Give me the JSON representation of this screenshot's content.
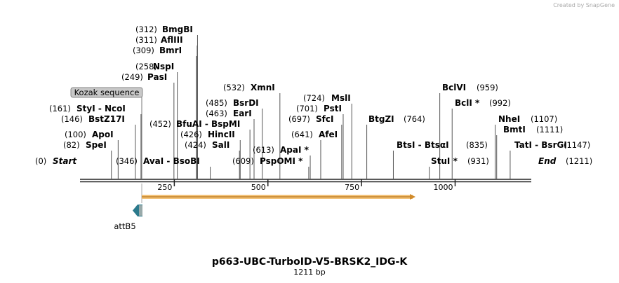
{
  "header": {
    "credit": "Created by SnapGene"
  },
  "map": {
    "title": "p663-UBC-TurboID-V5-BRSK2_IDG-K",
    "subtitle": "1211 bp",
    "ruler": [
      "250",
      "500",
      "750",
      "1000"
    ],
    "sites": [
      {
        "pos": "(312)",
        "name": "BmgBI"
      },
      {
        "pos": "(311)",
        "name": "AflIII"
      },
      {
        "pos": "(309)",
        "name": "BmrI"
      },
      {
        "pos": "(258)",
        "name": "NspI"
      },
      {
        "pos": "(249)",
        "name": "PasI"
      },
      {
        "pos": "(532)",
        "name": "XmnI"
      },
      {
        "pos": "(724)",
        "name": "MslI"
      },
      {
        "pos": "(959)",
        "name": "BclVI"
      },
      {
        "pos": "(485)",
        "name": "BsrDI"
      },
      {
        "pos": "(992)",
        "name": "BclI *"
      },
      {
        "pos": "(161)",
        "name": "StyI  -  NcoI"
      },
      {
        "pos": "(701)",
        "name": "PstI"
      },
      {
        "pos": "(463)",
        "name": "EarI"
      },
      {
        "pos": "(146)",
        "name": "BstZ17I"
      },
      {
        "pos": "(697)",
        "name": "SfcI"
      },
      {
        "pos": "(764)",
        "name": "BtgZI"
      },
      {
        "pos": "(1107)",
        "name": "NheI"
      },
      {
        "pos": "(452)",
        "name": "BfuAI  -  BspMI"
      },
      {
        "pos": "(1111)",
        "name": "BmtI"
      },
      {
        "pos": "(100)",
        "name": "ApoI"
      },
      {
        "pos": "(426)",
        "name": "HincII"
      },
      {
        "pos": "(641)",
        "name": "AfeI"
      },
      {
        "pos": "(82)",
        "name": "SpeI"
      },
      {
        "pos": "(424)",
        "name": "SalI"
      },
      {
        "pos": "(835)",
        "name": "BtsI  -  BtsαI"
      },
      {
        "pos": "(1147)",
        "name": "TatI  -  BsrGI"
      },
      {
        "pos": "(613)",
        "name": "ApaI *"
      },
      {
        "pos": "(0)",
        "name": "Start"
      },
      {
        "pos": "(346)",
        "name": "AvaI  -  BsoBI"
      },
      {
        "pos": "(609)",
        "name": "PspOMI *"
      },
      {
        "pos": "(931)",
        "name": "StuI *"
      },
      {
        "pos": "(1211)",
        "name": "End"
      }
    ],
    "features": {
      "kozak": "Kozak sequence",
      "attb5": "attB5"
    }
  }
}
